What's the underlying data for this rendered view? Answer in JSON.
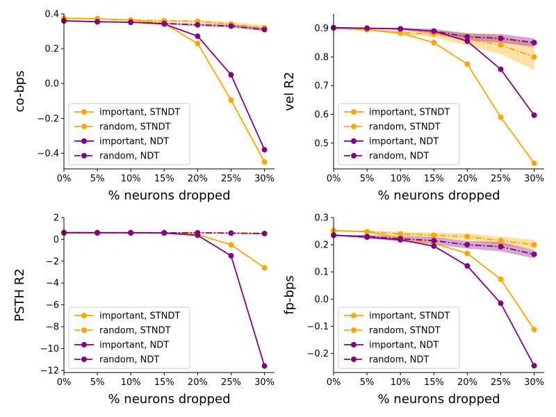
{
  "chart_data": [
    {
      "type": "line",
      "xlabel": "% neurons dropped",
      "ylabel": "co-bps",
      "x": [
        0,
        5,
        10,
        15,
        20,
        25,
        30
      ],
      "xtick_labels": [
        "0%",
        "5%",
        "10%",
        "15%",
        "20%",
        "25%",
        "30%"
      ],
      "xlim": [
        0,
        31.5
      ],
      "ylim": [
        -0.49,
        0.4
      ],
      "yticks": [
        -0.4,
        -0.2,
        0.0,
        0.2,
        0.4
      ],
      "ytick_labels": [
        "−0.4",
        "−0.2",
        "0.0",
        "0.2",
        "0.4"
      ],
      "legend_position": "lower-left",
      "series": [
        {
          "name": "important, STNDT",
          "color": "#ffa500",
          "style": "solid",
          "values": [
            0.375,
            0.372,
            0.365,
            0.345,
            0.23,
            -0.095,
            -0.45
          ]
        },
        {
          "name": "random, STNDT",
          "color": "#ffa500",
          "style": "dashdot",
          "values": [
            0.375,
            0.372,
            0.365,
            0.36,
            0.357,
            0.342,
            0.32
          ],
          "band": [
            [
              0.375,
              0.375
            ],
            [
              0.37,
              0.374
            ],
            [
              0.361,
              0.369
            ],
            [
              0.353,
              0.367
            ],
            [
              0.348,
              0.366
            ],
            [
              0.33,
              0.354
            ],
            [
              0.305,
              0.335
            ]
          ]
        },
        {
          "name": "important, NDT",
          "color": "#800080",
          "style": "solid",
          "values": [
            0.36,
            0.355,
            0.352,
            0.342,
            0.272,
            0.05,
            -0.38
          ]
        },
        {
          "name": "random, NDT",
          "color": "#800080",
          "style": "dashdot",
          "values": [
            0.36,
            0.355,
            0.352,
            0.345,
            0.337,
            0.33,
            0.31
          ],
          "band": [
            [
              0.36,
              0.36
            ],
            [
              0.353,
              0.357
            ],
            [
              0.349,
              0.355
            ],
            [
              0.34,
              0.35
            ],
            [
              0.33,
              0.344
            ],
            [
              0.322,
              0.338
            ],
            [
              0.3,
              0.32
            ]
          ]
        }
      ]
    },
    {
      "type": "line",
      "xlabel": "% neurons dropped",
      "ylabel": "vel R2",
      "x": [
        0,
        5,
        10,
        15,
        20,
        25,
        30
      ],
      "xtick_labels": [
        "0%",
        "5%",
        "10%",
        "15%",
        "20%",
        "25%",
        "30%"
      ],
      "xlim": [
        0,
        31.5
      ],
      "ylim": [
        0.41,
        0.95
      ],
      "yticks": [
        0.5,
        0.6,
        0.7,
        0.8,
        0.9
      ],
      "ytick_labels": [
        "0.5",
        "0.6",
        "0.7",
        "0.8",
        "0.9"
      ],
      "legend_position": "lower-left",
      "series": [
        {
          "name": "important, STNDT",
          "color": "#ffa500",
          "style": "solid",
          "values": [
            0.9,
            0.895,
            0.883,
            0.85,
            0.775,
            0.59,
            0.43
          ]
        },
        {
          "name": "random, STNDT",
          "color": "#ffa500",
          "style": "dashdot",
          "values": [
            0.9,
            0.895,
            0.885,
            0.88,
            0.862,
            0.842,
            0.8
          ],
          "band": [
            [
              0.9,
              0.9
            ],
            [
              0.892,
              0.898
            ],
            [
              0.879,
              0.891
            ],
            [
              0.868,
              0.892
            ],
            [
              0.84,
              0.884
            ],
            [
              0.81,
              0.874
            ],
            [
              0.755,
              0.845
            ]
          ]
        },
        {
          "name": "important, NDT",
          "color": "#800080",
          "style": "solid",
          "values": [
            0.902,
            0.9,
            0.898,
            0.89,
            0.855,
            0.757,
            0.597
          ]
        },
        {
          "name": "random, NDT",
          "color": "#800080",
          "style": "dashdot",
          "values": [
            0.902,
            0.9,
            0.898,
            0.89,
            0.87,
            0.865,
            0.85
          ],
          "band": [
            [
              0.902,
              0.902
            ],
            [
              0.898,
              0.902
            ],
            [
              0.894,
              0.902
            ],
            [
              0.882,
              0.898
            ],
            [
              0.858,
              0.882
            ],
            [
              0.85,
              0.88
            ],
            [
              0.835,
              0.865
            ]
          ]
        }
      ]
    },
    {
      "type": "line",
      "xlabel": "% neurons dropped",
      "ylabel": "PSTH R2",
      "x": [
        0,
        5,
        10,
        15,
        20,
        25,
        30
      ],
      "xtick_labels": [
        "0%",
        "5%",
        "10%",
        "15%",
        "20%",
        "25%",
        "30%"
      ],
      "xlim": [
        0,
        31.5
      ],
      "ylim": [
        -12.2,
        2.0
      ],
      "yticks": [
        -12,
        -10,
        -8,
        -6,
        -4,
        -2,
        0,
        2
      ],
      "ytick_labels": [
        "−12",
        "−10",
        "−8",
        "−6",
        "−4",
        "−2",
        "0",
        "2"
      ],
      "legend_position": "lower-left",
      "series": [
        {
          "name": "important, STNDT",
          "color": "#ffa500",
          "style": "solid",
          "values": [
            0.65,
            0.64,
            0.62,
            0.6,
            0.45,
            -0.5,
            -2.6
          ]
        },
        {
          "name": "random, STNDT",
          "color": "#ffa500",
          "style": "dashdot",
          "values": [
            0.65,
            0.64,
            0.63,
            0.62,
            0.6,
            0.58,
            0.55
          ],
          "band": [
            [
              0.65,
              0.65
            ],
            [
              0.62,
              0.66
            ],
            [
              0.6,
              0.66
            ],
            [
              0.58,
              0.66
            ],
            [
              0.55,
              0.65
            ],
            [
              0.52,
              0.64
            ],
            [
              0.48,
              0.62
            ]
          ]
        },
        {
          "name": "important, NDT",
          "color": "#800080",
          "style": "solid",
          "values": [
            0.6,
            0.6,
            0.6,
            0.58,
            0.37,
            -1.5,
            -11.6
          ]
        },
        {
          "name": "random, NDT",
          "color": "#800080",
          "style": "dashdot",
          "values": [
            0.6,
            0.6,
            0.6,
            0.6,
            0.6,
            0.57,
            0.53
          ],
          "band": [
            [
              0.6,
              0.6
            ],
            [
              0.58,
              0.62
            ],
            [
              0.57,
              0.63
            ],
            [
              0.56,
              0.64
            ],
            [
              0.55,
              0.65
            ],
            [
              0.51,
              0.63
            ],
            [
              0.45,
              0.61
            ]
          ]
        }
      ]
    },
    {
      "type": "line",
      "xlabel": "% neurons dropped",
      "ylabel": "fp-bps",
      "x": [
        0,
        5,
        10,
        15,
        20,
        25,
        30
      ],
      "xtick_labels": [
        "0%",
        "5%",
        "10%",
        "15%",
        "20%",
        "25%",
        "30%"
      ],
      "xlim": [
        0,
        31.5
      ],
      "ylim": [
        -0.27,
        0.3
      ],
      "yticks": [
        -0.2,
        -0.1,
        0.0,
        0.1,
        0.2,
        0.3
      ],
      "ytick_labels": [
        "−0.2",
        "−0.1",
        "0.0",
        "0.1",
        "0.2",
        "0.3"
      ],
      "legend_position": "lower-left",
      "series": [
        {
          "name": "important, STNDT",
          "color": "#ffa500",
          "style": "solid",
          "values": [
            0.252,
            0.248,
            0.225,
            0.205,
            0.168,
            0.073,
            -0.112
          ]
        },
        {
          "name": "random, STNDT",
          "color": "#ffa500",
          "style": "dashdot",
          "values": [
            0.252,
            0.248,
            0.24,
            0.235,
            0.23,
            0.215,
            0.2
          ],
          "band": [
            [
              0.252,
              0.252
            ],
            [
              0.244,
              0.252
            ],
            [
              0.232,
              0.248
            ],
            [
              0.225,
              0.245
            ],
            [
              0.218,
              0.242
            ],
            [
              0.2,
              0.23
            ],
            [
              0.182,
              0.218
            ]
          ]
        },
        {
          "name": "important, NDT",
          "color": "#800080",
          "style": "solid",
          "values": [
            0.235,
            0.228,
            0.218,
            0.195,
            0.122,
            -0.015,
            -0.245
          ]
        },
        {
          "name": "random, NDT",
          "color": "#800080",
          "style": "dashdot",
          "values": [
            0.235,
            0.23,
            0.222,
            0.215,
            0.2,
            0.193,
            0.165
          ],
          "band": [
            [
              0.235,
              0.235
            ],
            [
              0.223,
              0.237
            ],
            [
              0.212,
              0.232
            ],
            [
              0.202,
              0.228
            ],
            [
              0.186,
              0.214
            ],
            [
              0.176,
              0.21
            ],
            [
              0.15,
              0.18
            ]
          ]
        }
      ]
    }
  ]
}
